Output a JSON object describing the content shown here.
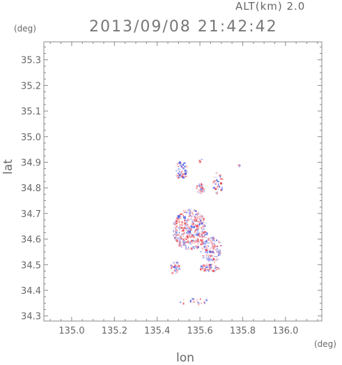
{
  "header": {
    "altitude_label": "ALT(km) 2.0",
    "timestamp": "2013/09/08 21:42:42"
  },
  "axes": {
    "x_unit": "(deg)",
    "y_unit": "(deg)",
    "xlabel": "lon",
    "ylabel": "lat"
  },
  "chart_data": {
    "type": "heatmap",
    "xlabel": "lon",
    "ylabel": "lat",
    "xlim": [
      134.87,
      136.17
    ],
    "ylim": [
      34.28,
      35.37
    ],
    "xticks": [
      135.0,
      135.2,
      135.4,
      135.6,
      135.8,
      136.0
    ],
    "xtick_labels": [
      "135.0",
      "135.2",
      "135.4",
      "135.6",
      "135.8",
      "136.0"
    ],
    "yticks": [
      34.3,
      34.4,
      34.5,
      34.6,
      34.7,
      34.8,
      34.9,
      35.0,
      35.1,
      35.2,
      35.3
    ],
    "ytick_labels": [
      "34.3",
      "34.4",
      "34.5",
      "34.6",
      "34.7",
      "34.8",
      "34.9",
      "35.0",
      "35.1",
      "35.2",
      "35.3"
    ],
    "colors": {
      "positive": "#e8474f",
      "negative": "#4a5ae8",
      "frame": "#888888"
    },
    "clusters": [
      {
        "lon": 135.51,
        "lat": 34.87,
        "rlon": 0.03,
        "rlat": 0.035,
        "n": 60
      },
      {
        "lon": 135.6,
        "lat": 34.8,
        "rlon": 0.02,
        "rlat": 0.02,
        "n": 35
      },
      {
        "lon": 135.68,
        "lat": 34.82,
        "rlon": 0.025,
        "rlat": 0.045,
        "n": 40
      },
      {
        "lon": 135.55,
        "lat": 34.64,
        "rlon": 0.08,
        "rlat": 0.08,
        "n": 420
      },
      {
        "lon": 135.65,
        "lat": 34.56,
        "rlon": 0.05,
        "rlat": 0.05,
        "n": 140
      },
      {
        "lon": 135.64,
        "lat": 34.49,
        "rlon": 0.045,
        "rlat": 0.015,
        "n": 70
      },
      {
        "lon": 135.48,
        "lat": 34.49,
        "rlon": 0.02,
        "rlat": 0.03,
        "n": 40
      },
      {
        "lon": 135.57,
        "lat": 34.36,
        "rlon": 0.07,
        "rlat": 0.012,
        "n": 18
      },
      {
        "lon": 135.78,
        "lat": 34.89,
        "rlon": 0.008,
        "rlat": 0.006,
        "n": 6
      },
      {
        "lon": 135.6,
        "lat": 34.91,
        "rlon": 0.008,
        "rlat": 0.008,
        "n": 6
      }
    ]
  }
}
